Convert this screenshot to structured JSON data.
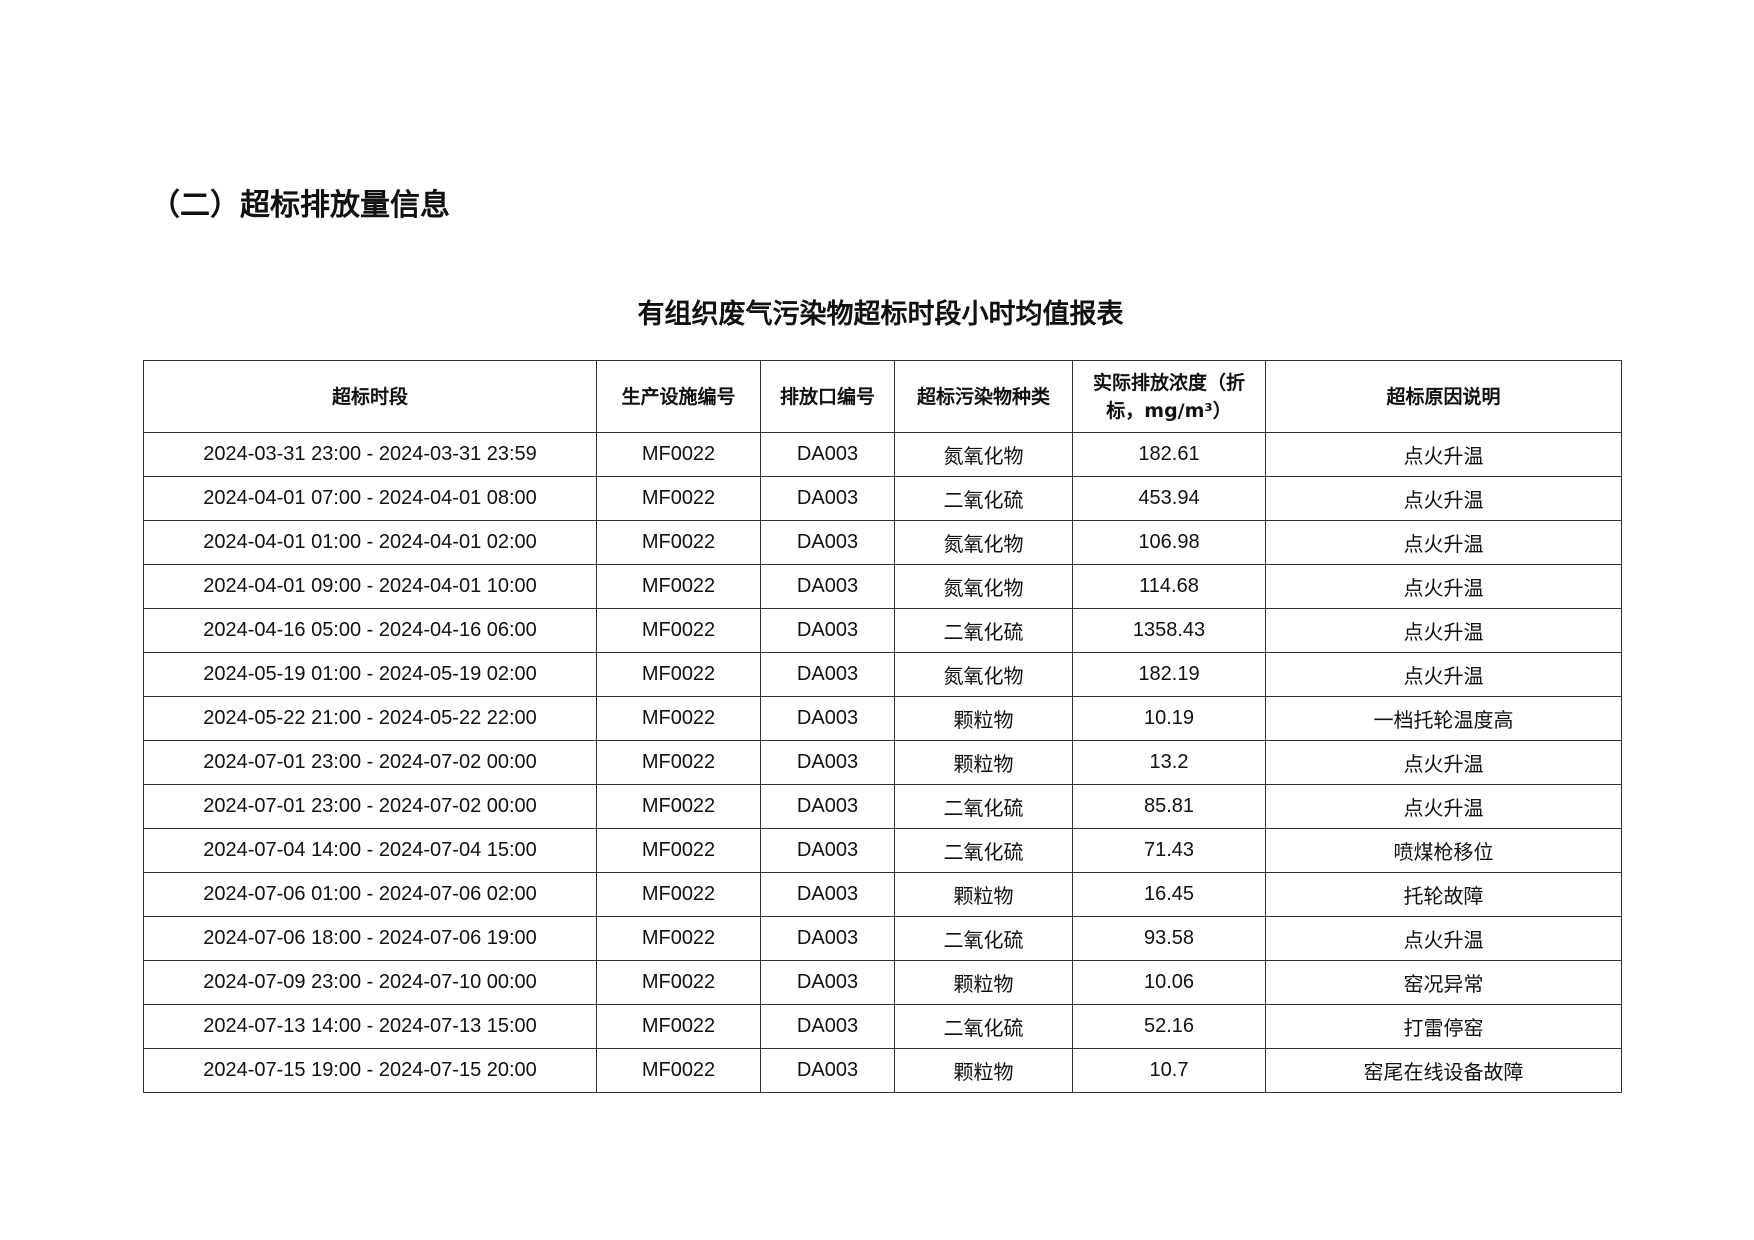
{
  "section_heading": "（二）超标排放量信息",
  "table_title": "有组织废气污染物超标时段小时均值报表",
  "headers": [
    "超标时段",
    "生产设施编号",
    "排放口编号",
    "超标污染物种类",
    "实际排放浓度（折标，mg/m³）",
    "超标原因说明"
  ],
  "rows": [
    [
      "2024-03-31 23:00 - 2024-03-31 23:59",
      "MF0022",
      "DA003",
      "氮氧化物",
      "182.61",
      "点火升温"
    ],
    [
      "2024-04-01 07:00 - 2024-04-01 08:00",
      "MF0022",
      "DA003",
      "二氧化硫",
      "453.94",
      "点火升温"
    ],
    [
      "2024-04-01 01:00 - 2024-04-01 02:00",
      "MF0022",
      "DA003",
      "氮氧化物",
      "106.98",
      "点火升温"
    ],
    [
      "2024-04-01 09:00 - 2024-04-01 10:00",
      "MF0022",
      "DA003",
      "氮氧化物",
      "114.68",
      "点火升温"
    ],
    [
      "2024-04-16 05:00 - 2024-04-16 06:00",
      "MF0022",
      "DA003",
      "二氧化硫",
      "1358.43",
      "点火升温"
    ],
    [
      "2024-05-19 01:00 - 2024-05-19 02:00",
      "MF0022",
      "DA003",
      "氮氧化物",
      "182.19",
      "点火升温"
    ],
    [
      "2024-05-22 21:00 - 2024-05-22 22:00",
      "MF0022",
      "DA003",
      "颗粒物",
      "10.19",
      "一档托轮温度高"
    ],
    [
      "2024-07-01 23:00 - 2024-07-02 00:00",
      "MF0022",
      "DA003",
      "颗粒物",
      "13.2",
      "点火升温"
    ],
    [
      "2024-07-01 23:00 - 2024-07-02 00:00",
      "MF0022",
      "DA003",
      "二氧化硫",
      "85.81",
      "点火升温"
    ],
    [
      "2024-07-04 14:00 - 2024-07-04 15:00",
      "MF0022",
      "DA003",
      "二氧化硫",
      "71.43",
      "喷煤枪移位"
    ],
    [
      "2024-07-06 01:00 - 2024-07-06 02:00",
      "MF0022",
      "DA003",
      "颗粒物",
      "16.45",
      "托轮故障"
    ],
    [
      "2024-07-06 18:00 - 2024-07-06 19:00",
      "MF0022",
      "DA003",
      "二氧化硫",
      "93.58",
      "点火升温"
    ],
    [
      "2024-07-09 23:00 - 2024-07-10 00:00",
      "MF0022",
      "DA003",
      "颗粒物",
      "10.06",
      "窑况异常"
    ],
    [
      "2024-07-13 14:00 - 2024-07-13 15:00",
      "MF0022",
      "DA003",
      "二氧化硫",
      "52.16",
      "打雷停窑"
    ],
    [
      "2024-07-15 19:00 - 2024-07-15 20:00",
      "MF0022",
      "DA003",
      "颗粒物",
      "10.7",
      "窑尾在线设备故障"
    ]
  ]
}
